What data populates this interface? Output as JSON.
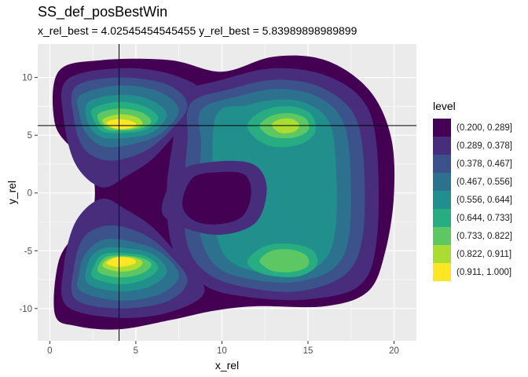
{
  "chart_data": {
    "type": "contour",
    "title": "SS_def_posBestWin",
    "subtitle": "x_rel_best = 4.02545454545455 y_rel_best = 5.83989898989899",
    "xlabel": "x_rel",
    "ylabel": "y_rel",
    "xlim": [
      -0.7,
      21.3
    ],
    "ylim": [
      -12.8,
      12.9
    ],
    "x_ticks": [
      0,
      5,
      10,
      15,
      20
    ],
    "y_ticks": [
      -10,
      -5,
      0,
      5,
      10
    ],
    "grid": true,
    "panel_background": "#EBEBEB",
    "best": {
      "x": 4.02545454545455,
      "y": 5.83989898989899
    },
    "legend": {
      "title": "level",
      "position": "right",
      "entries": [
        {
          "label": "(0.200, 0.289]",
          "color": "#440154"
        },
        {
          "label": "(0.289, 0.378]",
          "color": "#472D7B"
        },
        {
          "label": "(0.378, 0.467]",
          "color": "#3B528B"
        },
        {
          "label": "(0.467, 0.556]",
          "color": "#2C728E"
        },
        {
          "label": "(0.556, 0.644]",
          "color": "#21908C"
        },
        {
          "label": "(0.644, 0.733]",
          "color": "#27AD81"
        },
        {
          "label": "(0.733, 0.822]",
          "color": "#5DC863"
        },
        {
          "label": "(0.822, 0.911]",
          "color": "#AADC32"
        },
        {
          "label": "(0.911, 1.000]",
          "color": "#FDE725"
        }
      ]
    },
    "regions": [
      {
        "name": "outer-envelope",
        "level": 0,
        "points": [
          [
            0.5,
            10.5
          ],
          [
            3,
            11.5
          ],
          [
            7,
            11.5
          ],
          [
            10,
            10.5
          ],
          [
            13,
            11.8
          ],
          [
            16,
            11.5
          ],
          [
            18.5,
            9
          ],
          [
            19.8,
            5
          ],
          [
            20,
            0
          ],
          [
            19.5,
            -5
          ],
          [
            18.5,
            -8.5
          ],
          [
            16,
            -9.8
          ],
          [
            12,
            -9.8
          ],
          [
            9.5,
            -10.2
          ],
          [
            7,
            -11
          ],
          [
            4,
            -11.8
          ],
          [
            1.5,
            -11.5
          ],
          [
            0.3,
            -10.5
          ],
          [
            0.5,
            -6
          ],
          [
            1.5,
            -3.5
          ],
          [
            2.5,
            -1.5
          ],
          [
            2.5,
            1.5
          ],
          [
            1.5,
            3.5
          ],
          [
            0.3,
            6
          ]
        ]
      },
      {
        "name": "top-left-peak-band",
        "level": 1,
        "points": [
          [
            1,
            9.8
          ],
          [
            4,
            10.8
          ],
          [
            7,
            10.3
          ],
          [
            9,
            8.5
          ],
          [
            7.5,
            5.5
          ],
          [
            6,
            3
          ],
          [
            4.5,
            1.5
          ],
          [
            3,
            0.5
          ],
          [
            1.5,
            2.5
          ],
          [
            0.8,
            6.5
          ]
        ]
      },
      {
        "name": "bottom-left-peak-band",
        "level": 1,
        "points": [
          [
            1,
            -9.8
          ],
          [
            4,
            -10.8
          ],
          [
            7,
            -10.3
          ],
          [
            9,
            -8.5
          ],
          [
            7.5,
            -5.5
          ],
          [
            6,
            -3
          ],
          [
            4.5,
            -1.5
          ],
          [
            3,
            -0.5
          ],
          [
            1.5,
            -2.5
          ],
          [
            0.8,
            -6.5
          ]
        ]
      },
      {
        "name": "right-body-band",
        "level": 1,
        "points": [
          [
            7.5,
            8.5
          ],
          [
            10,
            9.8
          ],
          [
            13,
            10.8
          ],
          [
            16,
            10.2
          ],
          [
            18.2,
            8
          ],
          [
            19,
            4
          ],
          [
            19,
            -4
          ],
          [
            18,
            -8
          ],
          [
            15,
            -9.2
          ],
          [
            11.5,
            -9
          ],
          [
            9,
            -8
          ],
          [
            7.2,
            -5
          ],
          [
            6.8,
            0
          ],
          [
            7.2,
            5
          ]
        ]
      },
      {
        "name": "top-left-level-2",
        "level": 2,
        "points": [
          [
            1.5,
            9.2
          ],
          [
            4,
            10
          ],
          [
            6.8,
            9.4
          ],
          [
            8,
            7.6
          ],
          [
            7,
            5.4
          ],
          [
            5.5,
            3.6
          ],
          [
            3.5,
            2.8
          ],
          [
            2,
            3.8
          ],
          [
            1.4,
            6.5
          ]
        ]
      },
      {
        "name": "bottom-left-level-2",
        "level": 2,
        "points": [
          [
            1.5,
            -9.2
          ],
          [
            4,
            -10
          ],
          [
            6.8,
            -9.4
          ],
          [
            8,
            -7.6
          ],
          [
            7,
            -5.4
          ],
          [
            5.5,
            -3.6
          ],
          [
            3.5,
            -2.8
          ],
          [
            2,
            -3.8
          ],
          [
            1.4,
            -6.5
          ]
        ]
      },
      {
        "name": "right-level-2",
        "level": 2,
        "points": [
          [
            8.2,
            7.8
          ],
          [
            10.5,
            9
          ],
          [
            13,
            9.8
          ],
          [
            15.5,
            9.3
          ],
          [
            17.5,
            7.2
          ],
          [
            18.2,
            3.5
          ],
          [
            18.2,
            -3.5
          ],
          [
            17.2,
            -7
          ],
          [
            14.5,
            -8.5
          ],
          [
            11.5,
            -8.2
          ],
          [
            9.2,
            -7
          ],
          [
            8,
            -4.5
          ],
          [
            7.8,
            0
          ],
          [
            8,
            4.5
          ]
        ]
      },
      {
        "name": "top-left-level-3",
        "level": 3,
        "points": [
          [
            1.8,
            8.5
          ],
          [
            4,
            9.3
          ],
          [
            6.3,
            8.8
          ],
          [
            7.5,
            7.2
          ],
          [
            6.5,
            5.2
          ],
          [
            5,
            4.3
          ],
          [
            3.2,
            4
          ],
          [
            2.1,
            5.2
          ],
          [
            1.7,
            7
          ]
        ]
      },
      {
        "name": "bottom-left-level-3",
        "level": 3,
        "points": [
          [
            1.8,
            -8.5
          ],
          [
            4,
            -9.3
          ],
          [
            6.3,
            -8.8
          ],
          [
            7.5,
            -7.2
          ],
          [
            6.5,
            -5.2
          ],
          [
            5,
            -4.3
          ],
          [
            3.2,
            -4
          ],
          [
            2.1,
            -5.2
          ],
          [
            1.7,
            -7
          ]
        ]
      },
      {
        "name": "right-level-3",
        "level": 3,
        "points": [
          [
            8.8,
            7.2
          ],
          [
            11,
            8.4
          ],
          [
            13.2,
            9
          ],
          [
            15.3,
            8.5
          ],
          [
            16.8,
            6.8
          ],
          [
            17.4,
            3.5
          ],
          [
            17.4,
            -3.5
          ],
          [
            16.5,
            -6.5
          ],
          [
            14.3,
            -7.7
          ],
          [
            11.8,
            -7.5
          ],
          [
            9.8,
            -6.5
          ],
          [
            8.8,
            -4
          ],
          [
            8.6,
            0
          ],
          [
            8.8,
            4
          ]
        ]
      },
      {
        "name": "top-left-level-4",
        "level": 4,
        "points": [
          [
            2.2,
            7.8
          ],
          [
            4,
            8.5
          ],
          [
            5.8,
            8.1
          ],
          [
            6.8,
            6.8
          ],
          [
            6,
            5.3
          ],
          [
            4.6,
            4.8
          ],
          [
            3.1,
            4.8
          ],
          [
            2.3,
            5.8
          ]
        ]
      },
      {
        "name": "bottom-left-level-4",
        "level": 4,
        "points": [
          [
            2.2,
            -7.8
          ],
          [
            4,
            -8.5
          ],
          [
            5.8,
            -8.1
          ],
          [
            6.8,
            -6.8
          ],
          [
            6,
            -5.3
          ],
          [
            4.6,
            -4.8
          ],
          [
            3.1,
            -4.8
          ],
          [
            2.3,
            -5.8
          ]
        ]
      },
      {
        "name": "right-level-4",
        "level": 4,
        "points": [
          [
            9.6,
            6.4
          ],
          [
            11.5,
            7.6
          ],
          [
            13.4,
            8.1
          ],
          [
            15,
            7.7
          ],
          [
            16.2,
            6.2
          ],
          [
            16.6,
            3
          ],
          [
            16.6,
            -3
          ],
          [
            15.9,
            -5.9
          ],
          [
            14.2,
            -6.9
          ],
          [
            12,
            -6.8
          ],
          [
            10.4,
            -5.8
          ],
          [
            9.7,
            -3.8
          ],
          [
            9.6,
            -2
          ]
        ]
      },
      {
        "name": "top-left-level-5",
        "level": 5,
        "points": [
          [
            2.5,
            7.3
          ],
          [
            4,
            7.9
          ],
          [
            5.5,
            7.5
          ],
          [
            6.3,
            6.5
          ],
          [
            5.6,
            5.5
          ],
          [
            4.3,
            5.2
          ],
          [
            3.1,
            5.3
          ],
          [
            2.6,
            6.2
          ]
        ]
      },
      {
        "name": "bottom-left-level-5",
        "level": 5,
        "points": [
          [
            2.5,
            -7.3
          ],
          [
            4,
            -7.9
          ],
          [
            5.5,
            -7.5
          ],
          [
            6.3,
            -6.5
          ],
          [
            5.6,
            -5.5
          ],
          [
            4.3,
            -5.2
          ],
          [
            3.1,
            -5.3
          ],
          [
            2.6,
            -6.2
          ]
        ]
      },
      {
        "name": "top-right-level-5",
        "level": 5,
        "points": [
          [
            11.5,
            6
          ],
          [
            12.5,
            7.2
          ],
          [
            14,
            7.5
          ],
          [
            15.2,
            6.8
          ],
          [
            15.4,
            5.2
          ],
          [
            14.5,
            4.2
          ],
          [
            13,
            4
          ],
          [
            11.9,
            4.8
          ]
        ]
      },
      {
        "name": "bottom-right-level-5",
        "level": 5,
        "points": [
          [
            11.5,
            -5.8
          ],
          [
            12.5,
            -4.6
          ],
          [
            14,
            -4.4
          ],
          [
            15.3,
            -5
          ],
          [
            15.5,
            -6.3
          ],
          [
            14.5,
            -7.2
          ],
          [
            13,
            -7.2
          ],
          [
            11.9,
            -6.7
          ]
        ]
      },
      {
        "name": "top-left-level-6",
        "level": 6,
        "points": [
          [
            2.8,
            6.8
          ],
          [
            4,
            7.3
          ],
          [
            5.3,
            7
          ],
          [
            5.9,
            6.2
          ],
          [
            5.3,
            5.6
          ],
          [
            4.2,
            5.4
          ],
          [
            3.2,
            5.6
          ]
        ]
      },
      {
        "name": "bottom-left-level-6",
        "level": 6,
        "points": [
          [
            2.8,
            -6.8
          ],
          [
            4,
            -7.3
          ],
          [
            5.3,
            -7
          ],
          [
            5.9,
            -6.2
          ],
          [
            5.3,
            -5.6
          ],
          [
            4.2,
            -5.4
          ],
          [
            3.2,
            -5.6
          ]
        ]
      },
      {
        "name": "top-right-level-6",
        "level": 6,
        "points": [
          [
            12.2,
            5.9
          ],
          [
            12.9,
            6.7
          ],
          [
            14,
            6.9
          ],
          [
            14.9,
            6.4
          ],
          [
            15,
            5.4
          ],
          [
            14.2,
            4.8
          ],
          [
            13.1,
            4.8
          ],
          [
            12.5,
            5.2
          ]
        ]
      },
      {
        "name": "bottom-right-level-6",
        "level": 6,
        "points": [
          [
            12.2,
            -5.8
          ],
          [
            12.9,
            -5
          ],
          [
            14,
            -4.9
          ],
          [
            14.9,
            -5.4
          ],
          [
            15,
            -6.3
          ],
          [
            14.2,
            -6.8
          ],
          [
            13.1,
            -6.8
          ],
          [
            12.5,
            -6.4
          ]
        ]
      },
      {
        "name": "top-left-level-7",
        "level": 7,
        "points": [
          [
            3.1,
            6.4
          ],
          [
            4,
            6.8
          ],
          [
            5,
            6.6
          ],
          [
            5.4,
            6
          ],
          [
            4.9,
            5.6
          ],
          [
            4,
            5.5
          ],
          [
            3.3,
            5.8
          ]
        ]
      },
      {
        "name": "bottom-left-level-7",
        "level": 7,
        "points": [
          [
            3.1,
            -6.4
          ],
          [
            4,
            -6.8
          ],
          [
            5,
            -6.6
          ],
          [
            5.4,
            -6
          ],
          [
            4.9,
            -5.6
          ],
          [
            4,
            -5.5
          ],
          [
            3.3,
            -5.8
          ]
        ]
      },
      {
        "name": "top-right-level-7",
        "level": 7,
        "points": [
          [
            12.9,
            5.9
          ],
          [
            13.4,
            6.4
          ],
          [
            14.1,
            6.4
          ],
          [
            14.5,
            5.9
          ],
          [
            14.2,
            5.3
          ],
          [
            13.4,
            5.2
          ]
        ]
      },
      {
        "name": "top-left-level-8",
        "level": 8,
        "points": [
          [
            3.3,
            6.1
          ],
          [
            4,
            6.4
          ],
          [
            4.8,
            6.2
          ],
          [
            5,
            5.9
          ],
          [
            4.6,
            5.6
          ],
          [
            3.8,
            5.6
          ]
        ]
      },
      {
        "name": "bottom-left-level-8",
        "level": 8,
        "points": [
          [
            3.3,
            -6.1
          ],
          [
            4,
            -6.4
          ],
          [
            4.8,
            -6.2
          ],
          [
            5,
            -5.9
          ],
          [
            4.6,
            -5.6
          ],
          [
            3.8,
            -5.6
          ]
        ]
      },
      {
        "name": "center-hole-band",
        "level": 1,
        "points": [
          [
            6.5,
            -1.5
          ],
          [
            7.5,
            1.8
          ],
          [
            9.5,
            2.7
          ],
          [
            11.8,
            2.5
          ],
          [
            12.6,
            0.5
          ],
          [
            12,
            -2.5
          ],
          [
            10,
            -3.6
          ],
          [
            7.8,
            -3
          ]
        ]
      },
      {
        "name": "center-hole",
        "level": 0,
        "points": [
          [
            7.7,
            -1
          ],
          [
            8.3,
            1.3
          ],
          [
            9.8,
            1.8
          ],
          [
            11.3,
            1.6
          ],
          [
            11.7,
            0
          ],
          [
            11.2,
            -2
          ],
          [
            9.8,
            -2.7
          ],
          [
            8.4,
            -2.4
          ]
        ]
      }
    ]
  }
}
